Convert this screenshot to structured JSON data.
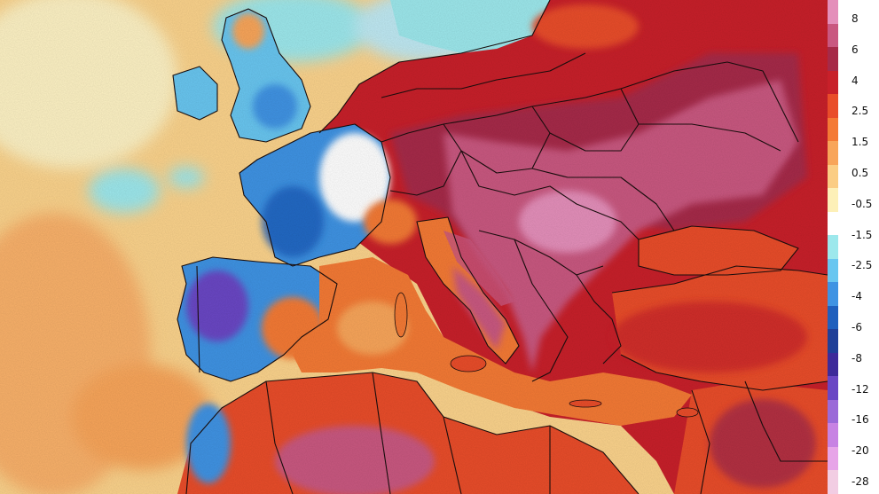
{
  "legend": {
    "ticks": [
      "8",
      "6",
      "4",
      "2.5",
      "1.5",
      "0.5",
      "-0.5",
      "-1.5",
      "-2.5",
      "-4",
      "-6",
      "-8",
      "-12",
      "-16",
      "-20",
      "-28"
    ],
    "colors": [
      "#e48fba",
      "#c95880",
      "#a62a48",
      "#c8202a",
      "#e94d2a",
      "#f47a35",
      "#f8a55a",
      "#fbcd84",
      "#fdf0b8",
      "#ffffff",
      "#9de8ec",
      "#69c6f0",
      "#3f93e3",
      "#1f5fbd",
      "#1f3f98",
      "#3d2a9a",
      "#6a46c4",
      "#9b6ad8",
      "#c783e3",
      "#e7a5e8",
      "#f2cde3"
    ]
  },
  "map": {
    "colors": {
      "ocean_warm": "#fbd38c",
      "ocean_pale": "#fdeaae",
      "ocean_cool": "#9de8ec",
      "land_hot": "#c8202a",
      "land_very_hot": "#a62a48",
      "land_extreme": "#c95880",
      "land_warm": "#e94d2a",
      "land_mild": "#f47a35",
      "land_cold": "#3f93e3",
      "land_very_cold": "#1f5fbd",
      "land_coldest": "#6a46c4",
      "border": "#1a0e0e"
    }
  }
}
